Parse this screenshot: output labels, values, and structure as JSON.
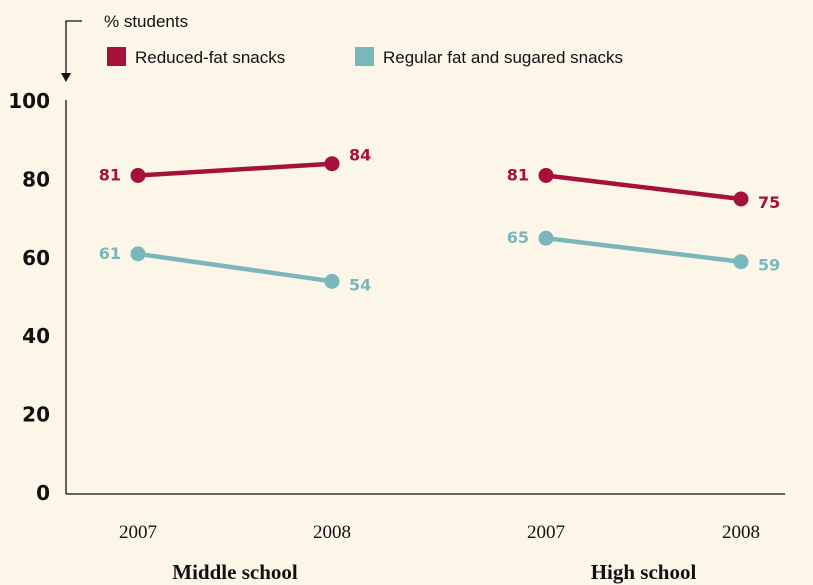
{
  "chart_data": {
    "type": "line",
    "ylabel": "% students",
    "ylim": [
      0,
      100
    ],
    "yticks": [
      0,
      20,
      40,
      60,
      80,
      100
    ],
    "grid": false,
    "legend_position": "top-left",
    "groups": [
      {
        "name": "Middle school",
        "categories": [
          "2007",
          "2008"
        ]
      },
      {
        "name": "High school",
        "categories": [
          "2007",
          "2008"
        ]
      }
    ],
    "series": [
      {
        "name": "Reduced-fat snacks",
        "color": "#a6113c",
        "values": {
          "Middle school": [
            81,
            84
          ],
          "High school": [
            81,
            75
          ]
        }
      },
      {
        "name": "Regular fat and sugared snacks",
        "color": "#7ab7bb",
        "values": {
          "Middle school": [
            61,
            54
          ],
          "High school": [
            65,
            59
          ]
        }
      }
    ]
  }
}
